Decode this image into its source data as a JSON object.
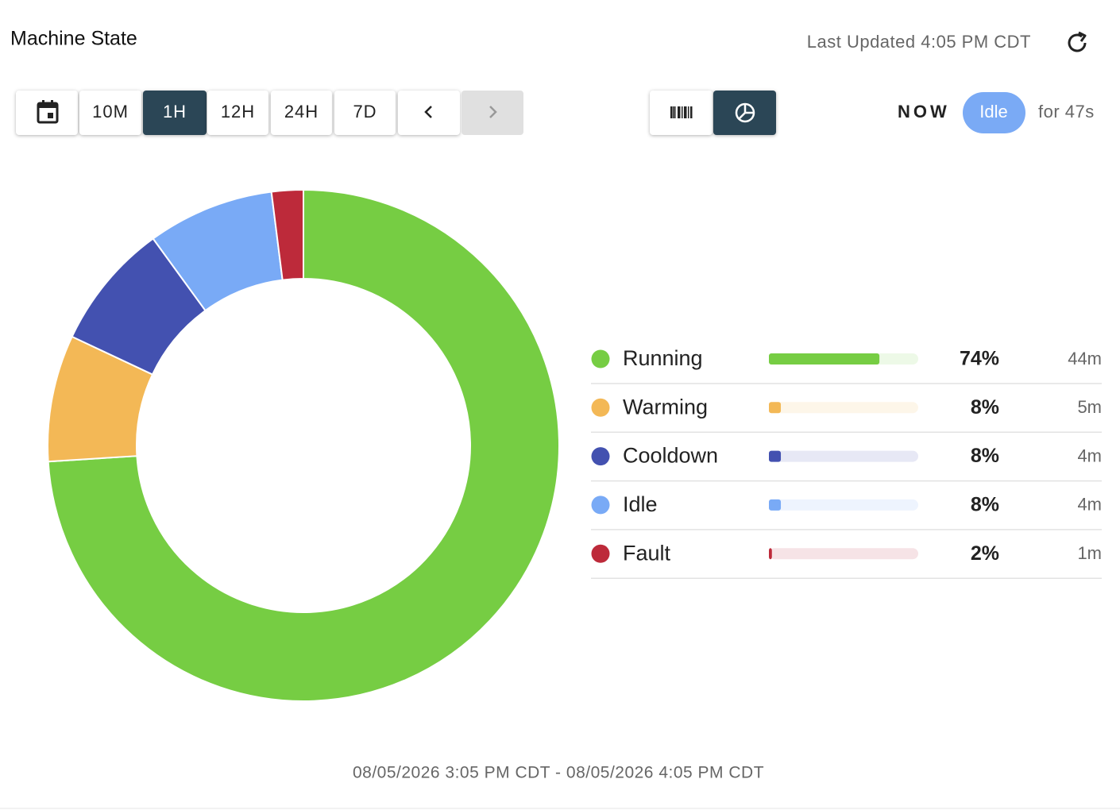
{
  "header": {
    "title": "Machine State",
    "last_updated": "Last Updated 4:05 PM CDT"
  },
  "toolbar": {
    "ranges": [
      "10M",
      "1H",
      "12H",
      "24H",
      "7D"
    ],
    "selected_index": 1,
    "view_selected_index": 1
  },
  "status": {
    "label": "NOW",
    "state": "Idle",
    "duration": "for 47s"
  },
  "chart_data": {
    "type": "pie",
    "donut": true,
    "categories": [
      "Running",
      "Warming",
      "Cooldown",
      "Idle",
      "Fault"
    ],
    "values": [
      74,
      8,
      8,
      8,
      2
    ],
    "value_labels": [
      "74%",
      "8%",
      "8%",
      "8%",
      "2%"
    ],
    "durations": [
      "44m",
      "5m",
      "4m",
      "4m",
      "1m"
    ],
    "colors": [
      "#76cd43",
      "#f3b856",
      "#4351b0",
      "#79aaf6",
      "#bd2a3a"
    ]
  },
  "footer": {
    "range": "08/05/2026 3:05 PM CDT - 08/05/2026 4:05 PM CDT"
  }
}
